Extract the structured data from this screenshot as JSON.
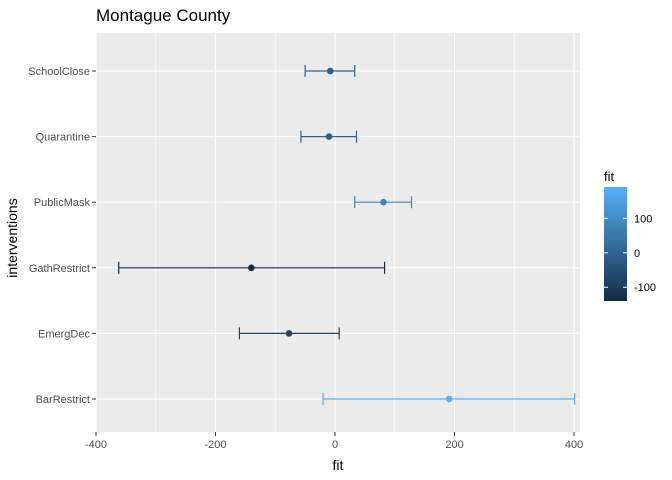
{
  "chart_data": {
    "type": "scatter",
    "title": "Montague County",
    "xlabel": "fit",
    "ylabel": "interventions",
    "xlim": [
      -400,
      410
    ],
    "x_ticks": [
      -400,
      -200,
      0,
      200,
      400
    ],
    "x_tick_labels": [
      "-400",
      "-200",
      "0",
      "200",
      "400"
    ],
    "categories": [
      "SchoolClose",
      "Quarantine",
      "PublicMask",
      "GathRestrict",
      "EmergDec",
      "BarRestrict"
    ],
    "series": [
      {
        "points": [
          {
            "category": "SchoolClose",
            "fit": -8,
            "lower": -50,
            "upper": 33
          },
          {
            "category": "Quarantine",
            "fit": -10,
            "lower": -57,
            "upper": 36
          },
          {
            "category": "PublicMask",
            "fit": 81,
            "lower": 33,
            "upper": 128
          },
          {
            "category": "GathRestrict",
            "fit": -140,
            "lower": -362,
            "upper": 83
          },
          {
            "category": "EmergDec",
            "fit": -77,
            "lower": -160,
            "upper": 7
          },
          {
            "category": "BarRestrict",
            "fit": 191,
            "lower": -20,
            "upper": 401
          }
        ]
      }
    ],
    "grid": true,
    "legend": {
      "title": "fit",
      "position": "right",
      "type": "colorbar",
      "range": [
        -140,
        191
      ],
      "ticks": [
        100,
        0,
        -100
      ],
      "tick_labels": [
        "100",
        "0",
        "-100"
      ],
      "color_low": "#132B43",
      "color_high": "#56B1F7"
    },
    "panel_background": "#EBEBEB",
    "grid_color": "#FFFFFF"
  }
}
